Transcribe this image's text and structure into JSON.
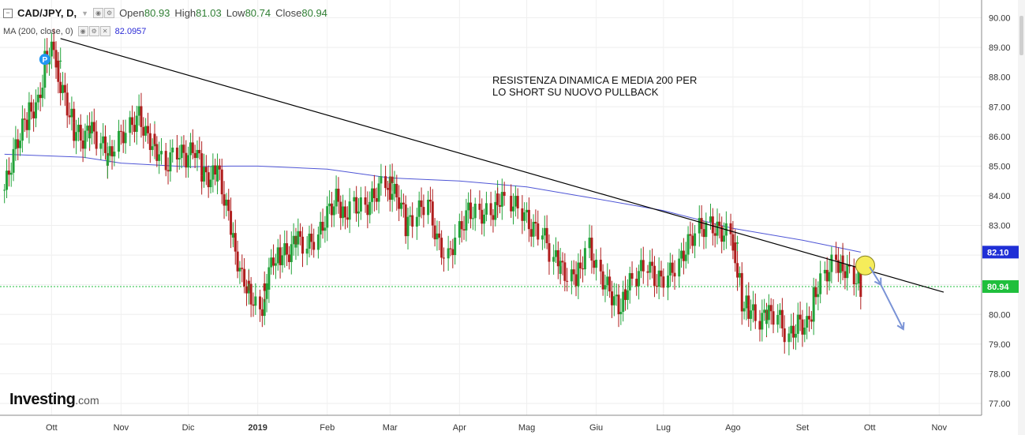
{
  "header": {
    "symbol": "CAD/JPY, D,",
    "open_label": "Open",
    "open": "80.93",
    "high_label": "High",
    "high": "81.03",
    "low_label": "Low",
    "low": "80.74",
    "close_label": "Close",
    "close": "80.94",
    "ma_label": "MA (200, close, 0)",
    "ma_value": "82.0957"
  },
  "logo": {
    "brand": "Investing",
    "suffix": ".com"
  },
  "colors": {
    "up": "#22a33a",
    "down": "#b01d1d",
    "ma": "#4f56d6",
    "price_line": "#1fbf3c",
    "trendline": "#000000",
    "arrow": "#7a93d6",
    "circle": "#f5ec5a"
  },
  "chart_data": {
    "type": "candlestick",
    "annotation": "RESISTENZA DINAMICA E MEDIA 200 PER\nLO SHORT SU NUOVO PULLBACK",
    "y_ticks": [
      "90.00",
      "89.00",
      "88.00",
      "87.00",
      "86.00",
      "85.00",
      "84.00",
      "83.00",
      "82.00",
      "81.00",
      "80.00",
      "79.00",
      "78.00",
      "77.00"
    ],
    "ylim": [
      76.6,
      90.6
    ],
    "x_ticks": [
      "Ott",
      "Nov",
      "Dic",
      "2019",
      "Feb",
      "Mar",
      "Apr",
      "Mag",
      "Giu",
      "Lug",
      "Ago",
      "Set",
      "Ott",
      "Nov"
    ],
    "last_price": 80.94,
    "ma_last": 82.1,
    "ma_tag": "82.10",
    "price_tag": "80.94",
    "close_points": [
      [
        "2018-09-10",
        84.2
      ],
      [
        "2018-09-14",
        85.4
      ],
      [
        "2018-09-18",
        86.3
      ],
      [
        "2018-09-21",
        86.8
      ],
      [
        "2018-09-25",
        87.1
      ],
      [
        "2018-09-28",
        88.7
      ],
      [
        "2018-10-02",
        88.9
      ],
      [
        "2018-10-04",
        88.0
      ],
      [
        "2018-10-08",
        87.0
      ],
      [
        "2018-10-11",
        86.2
      ],
      [
        "2018-10-15",
        85.9
      ],
      [
        "2018-10-18",
        86.3
      ],
      [
        "2018-10-23",
        85.8
      ],
      [
        "2018-10-26",
        85.2
      ],
      [
        "2018-10-31",
        85.9
      ],
      [
        "2018-11-05",
        86.3
      ],
      [
        "2018-11-09",
        86.7
      ],
      [
        "2018-11-13",
        85.9
      ],
      [
        "2018-11-16",
        85.7
      ],
      [
        "2018-11-21",
        85.0
      ],
      [
        "2018-11-26",
        85.5
      ],
      [
        "2018-11-30",
        85.3
      ],
      [
        "2018-12-04",
        85.6
      ],
      [
        "2018-12-07",
        84.7
      ],
      [
        "2018-12-11",
        84.6
      ],
      [
        "2018-12-14",
        84.9
      ],
      [
        "2018-12-18",
        83.6
      ],
      [
        "2018-12-21",
        82.4
      ],
      [
        "2018-12-25",
        81.2
      ],
      [
        "2018-12-28",
        80.8
      ],
      [
        "2019-01-02",
        80.1
      ],
      [
        "2019-01-04",
        80.9
      ],
      [
        "2019-01-08",
        81.9
      ],
      [
        "2019-01-11",
        82.0
      ],
      [
        "2019-01-15",
        82.1
      ],
      [
        "2019-01-18",
        82.6
      ],
      [
        "2019-01-23",
        82.3
      ],
      [
        "2019-01-28",
        82.6
      ],
      [
        "2019-02-01",
        83.4
      ],
      [
        "2019-02-05",
        83.9
      ],
      [
        "2019-02-08",
        83.3
      ],
      [
        "2019-02-13",
        83.7
      ],
      [
        "2019-02-18",
        83.6
      ],
      [
        "2019-02-22",
        84.0
      ],
      [
        "2019-02-27",
        84.5
      ],
      [
        "2019-03-01",
        84.2
      ],
      [
        "2019-03-05",
        83.9
      ],
      [
        "2019-03-08",
        82.9
      ],
      [
        "2019-03-13",
        83.4
      ],
      [
        "2019-03-18",
        83.8
      ],
      [
        "2019-03-22",
        82.5
      ],
      [
        "2019-03-27",
        81.9
      ],
      [
        "2019-04-01",
        82.8
      ],
      [
        "2019-04-05",
        83.5
      ],
      [
        "2019-04-10",
        83.4
      ],
      [
        "2019-04-15",
        83.4
      ],
      [
        "2019-04-18",
        83.9
      ],
      [
        "2019-04-24",
        83.8
      ],
      [
        "2019-04-29",
        83.5
      ],
      [
        "2019-05-03",
        82.9
      ],
      [
        "2019-05-08",
        82.8
      ],
      [
        "2019-05-13",
        81.9
      ],
      [
        "2019-05-16",
        81.6
      ],
      [
        "2019-05-21",
        81.2
      ],
      [
        "2019-05-24",
        81.4
      ],
      [
        "2019-05-29",
        82.3
      ],
      [
        "2019-06-03",
        81.3
      ],
      [
        "2019-06-07",
        80.8
      ],
      [
        "2019-06-11",
        80.2
      ],
      [
        "2019-06-14",
        80.8
      ],
      [
        "2019-06-19",
        81.3
      ],
      [
        "2019-06-24",
        81.7
      ],
      [
        "2019-06-28",
        81.1
      ],
      [
        "2019-07-03",
        81.3
      ],
      [
        "2019-07-08",
        81.7
      ],
      [
        "2019-07-12",
        82.4
      ],
      [
        "2019-07-17",
        82.9
      ],
      [
        "2019-07-22",
        83.0
      ],
      [
        "2019-07-26",
        82.8
      ],
      [
        "2019-07-31",
        82.7
      ],
      [
        "2019-08-02",
        81.9
      ],
      [
        "2019-08-05",
        80.4
      ],
      [
        "2019-08-08",
        80.2
      ],
      [
        "2019-08-13",
        79.8
      ],
      [
        "2019-08-16",
        80.0
      ],
      [
        "2019-08-21",
        80.0
      ],
      [
        "2019-08-26",
        79.2
      ],
      [
        "2019-08-30",
        79.7
      ],
      [
        "2019-09-03",
        79.6
      ],
      [
        "2019-09-06",
        80.6
      ],
      [
        "2019-09-11",
        81.3
      ],
      [
        "2019-09-16",
        81.8
      ],
      [
        "2019-09-19",
        81.6
      ],
      [
        "2019-09-24",
        81.3
      ],
      [
        "2019-09-27",
        80.94
      ]
    ],
    "ma_points": [
      [
        "2018-09-10",
        85.4
      ],
      [
        "2018-10-15",
        85.3
      ],
      [
        "2018-11-01",
        85.1
      ],
      [
        "2018-12-01",
        84.98
      ],
      [
        "2018-12-20",
        85.0
      ],
      [
        "2019-01-01",
        85.0
      ],
      [
        "2019-02-01",
        84.9
      ],
      [
        "2019-03-01",
        84.6
      ],
      [
        "2019-04-01",
        84.5
      ],
      [
        "2019-05-01",
        84.3
      ],
      [
        "2019-06-01",
        83.9
      ],
      [
        "2019-07-01",
        83.5
      ],
      [
        "2019-08-01",
        82.9
      ],
      [
        "2019-09-01",
        82.5
      ],
      [
        "2019-09-27",
        82.1
      ]
    ],
    "trendline": [
      [
        "2018-10-05",
        89.3
      ],
      [
        "2019-11-03",
        80.75
      ]
    ],
    "arrow": [
      [
        "2019-10-01",
        81.6
      ],
      [
        "2019-10-06",
        81.0
      ],
      [
        "2019-10-16",
        79.5
      ]
    ]
  }
}
